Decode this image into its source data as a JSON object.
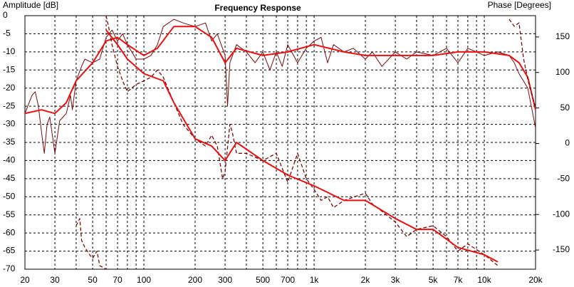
{
  "chart_data": {
    "type": "line",
    "title": "Frequency Response",
    "ylabel": "Amplitude [dB]",
    "y2label": "Phase [Degrees]",
    "xscale": "log",
    "grid": true,
    "xlim": [
      20,
      20000
    ],
    "ylim": [
      -70,
      0
    ],
    "y2lim": [
      -177,
      180
    ],
    "xticks": [
      20,
      30,
      50,
      70,
      100,
      200,
      300,
      500,
      700,
      {
        "value": 1000,
        "label": "1k"
      },
      {
        "value": 2000,
        "label": "2k"
      },
      {
        "value": 3000,
        "label": "3k"
      },
      {
        "value": 5000,
        "label": "5k"
      },
      {
        "value": 7000,
        "label": "7k"
      },
      {
        "value": 10000,
        "label": "10k"
      },
      {
        "value": 20000,
        "label": "20k"
      }
    ],
    "xminor": [
      40,
      60,
      80,
      90,
      400,
      600,
      800,
      900,
      4000,
      6000,
      8000,
      9000
    ],
    "yticks": [
      0,
      -5,
      -10,
      -15,
      -20,
      -25,
      -30,
      -35,
      -40,
      -45,
      -50,
      -55,
      -60,
      -65,
      -70
    ],
    "y2ticks": [
      150,
      100,
      50,
      0,
      -50,
      -100,
      -150
    ],
    "series": [
      {
        "color": "#7a0a0a",
        "dash": false,
        "width": 1,
        "x": [
          20,
          22,
          23,
          24,
          25,
          26,
          27,
          28,
          30,
          32,
          35,
          37,
          38,
          40,
          43,
          45,
          50,
          55,
          60,
          65,
          70,
          75,
          80,
          90,
          100,
          110,
          120,
          130,
          150,
          170,
          200,
          230,
          250,
          270,
          300,
          310,
          320,
          350,
          400,
          450,
          500,
          550,
          600,
          650,
          700,
          800,
          900,
          1000,
          1100,
          1200,
          1300,
          1500,
          1700,
          2000,
          2200,
          2500,
          3000,
          3500,
          4000,
          5000,
          6000,
          7000,
          8000,
          9000,
          10000,
          12000,
          14000,
          15000,
          16000,
          18000,
          20000
        ],
        "values": [
          -27,
          -22,
          -21,
          -25,
          -32,
          -38,
          -30,
          -28,
          -38,
          -29,
          -27,
          -22,
          -26,
          -18,
          -14,
          -12,
          -13,
          -12,
          -6,
          -4,
          -7,
          -5,
          -8,
          -12,
          -12,
          -11,
          -8,
          -3,
          -1,
          -2,
          -3,
          -2,
          -7,
          -5,
          -11,
          -25,
          -13,
          -8,
          -10,
          -13,
          -10,
          -15,
          -10,
          -14,
          -8,
          -13,
          -9,
          -7,
          -6,
          -13,
          -8,
          -10,
          -9,
          -12,
          -10,
          -14,
          -10,
          -12,
          -10,
          -11,
          -9,
          -13,
          -9,
          -10,
          -11,
          -10,
          -11,
          -13,
          -16,
          -20,
          -31
        ]
      },
      {
        "color": "#e81010",
        "dash": false,
        "width": 2,
        "x": [
          20,
          25,
          30,
          35,
          40,
          50,
          60,
          70,
          80,
          100,
          120,
          150,
          200,
          250,
          300,
          350,
          500,
          700,
          1000,
          1500,
          2000,
          3000,
          5000,
          7000,
          10000,
          14000,
          16000,
          18000,
          20000
        ],
        "values": [
          -27,
          -26,
          -27,
          -24,
          -18,
          -13,
          -7,
          -6,
          -8,
          -11,
          -9,
          -3,
          -3,
          -6,
          -13,
          -9,
          -11,
          -10,
          -8,
          -10,
          -11,
          -11,
          -11,
          -10,
          -10,
          -11,
          -13,
          -17,
          -26
        ]
      },
      {
        "color": "#7a0a0a",
        "dash": true,
        "width": 1.3,
        "x": [
          60,
          62,
          65,
          70,
          75,
          80,
          90,
          100,
          110,
          120,
          130,
          150,
          170,
          200,
          230,
          250,
          270,
          290,
          300,
          320,
          330,
          350,
          400,
          500,
          600,
          700,
          800,
          900,
          1000,
          1100,
          1200,
          1300,
          1500,
          2000,
          2200,
          2500,
          3000,
          3500,
          4000,
          5000,
          6000,
          7000,
          8000,
          10000,
          12000
        ],
        "values": [
          0,
          -3,
          -8,
          -14,
          -18,
          -21,
          -19,
          -18,
          -17,
          -15,
          -17,
          -24,
          -30,
          -34,
          -36,
          -33,
          -36,
          -45,
          -43,
          -30,
          -32,
          -38,
          -38,
          -40,
          -38,
          -46,
          -38,
          -45,
          -48,
          -51,
          -50,
          -53,
          -51,
          -49,
          -52,
          -54,
          -57,
          -61,
          -59,
          -58,
          -61,
          -65,
          -63,
          -66,
          -69
        ]
      },
      {
        "color": "#e81010",
        "dash": false,
        "width": 2,
        "x": [
          60,
          70,
          80,
          100,
          130,
          150,
          200,
          250,
          300,
          350,
          500,
          700,
          1000,
          1500,
          2000,
          3000,
          4000,
          5000,
          7000,
          10000,
          12000
        ],
        "values": [
          -4,
          -8,
          -12,
          -16,
          -18,
          -24,
          -34,
          -36,
          -40,
          -35,
          -40,
          -44,
          -47,
          -51,
          -51,
          -56,
          -59,
          -59,
          -64,
          -66,
          -68
        ]
      },
      {
        "color": "#7a0a0a",
        "dash": true,
        "width": 1.3,
        "x": [
          40,
          42,
          43,
          45,
          48,
          50,
          53,
          55,
          60
        ],
        "values": [
          -58,
          -56,
          -62,
          -64,
          -66,
          -67,
          -65,
          -69,
          -70
        ]
      },
      {
        "color": "#7a0a0a",
        "dash": true,
        "width": 1.3,
        "axis": "y2",
        "x": [
          14000,
          15000,
          16000,
          17000,
          18000,
          19000,
          20000
        ],
        "values": [
          175,
          165,
          170,
          120,
          90,
          70,
          50
        ]
      }
    ]
  }
}
